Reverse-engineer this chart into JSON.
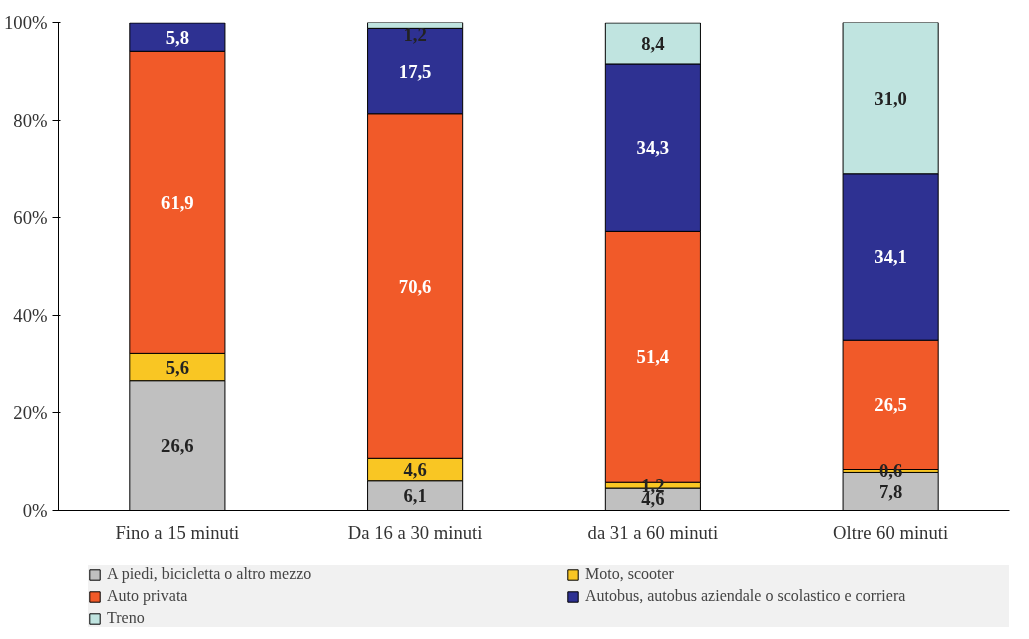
{
  "chart_data": {
    "type": "bar",
    "stacked": true,
    "categories": [
      "Fino a 15 minuti",
      "Da 16 a 30 minuti",
      "da 31 a 60 minuti",
      "Oltre 60 minuti"
    ],
    "ylim": [
      0,
      100
    ],
    "yticks": [
      {
        "value": 0,
        "label": "0%"
      },
      {
        "value": 20,
        "label": "20%"
      },
      {
        "value": 40,
        "label": "40%"
      },
      {
        "value": 60,
        "label": "60%"
      },
      {
        "value": 80,
        "label": "80%"
      },
      {
        "value": 100,
        "label": "100%"
      }
    ],
    "grid": false,
    "legend": "bottom",
    "series": [
      {
        "name": "A piedi, bicicletta o altro mezzo",
        "color": "#c0c0c0",
        "values": [
          26.6,
          6.1,
          4.6,
          7.8
        ],
        "value_labels": [
          "26,6",
          "6,1",
          "4,6",
          "7,8"
        ]
      },
      {
        "name": "Moto, scooter",
        "color": "#f9c623",
        "values": [
          5.6,
          4.6,
          1.2,
          0.6
        ],
        "value_labels": [
          "5,6",
          "4,6",
          "1,2",
          "0,6"
        ]
      },
      {
        "name": "Auto privata",
        "color": "#f15a29",
        "values": [
          61.9,
          70.6,
          51.4,
          26.5
        ],
        "value_labels": [
          "61,9",
          "70,6",
          "51,4",
          "26,5"
        ]
      },
      {
        "name": "Autobus, autobus aziendale o scolastico e corriera",
        "color": "#2e3192",
        "values": [
          5.8,
          17.5,
          34.3,
          34.1
        ],
        "value_labels": [
          "5,8",
          "17,5",
          "34,3",
          "34,1"
        ]
      },
      {
        "name": "Treno",
        "color": "#c0e4e0",
        "values": [
          null,
          1.2,
          8.4,
          31.0
        ],
        "value_labels": [
          null,
          "1,2",
          "8,4",
          "31,0"
        ]
      }
    ]
  }
}
